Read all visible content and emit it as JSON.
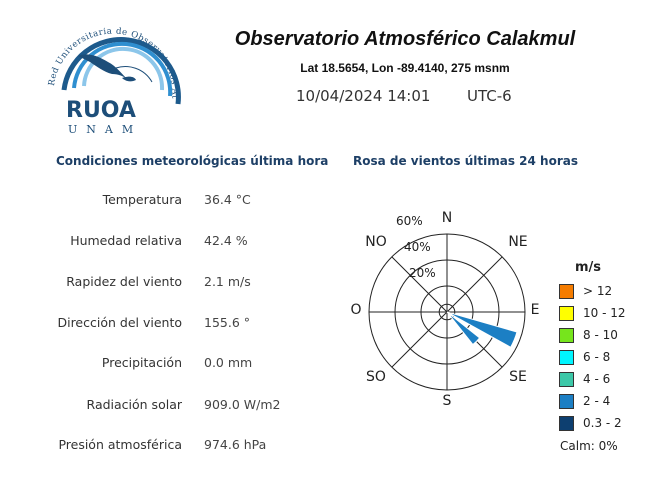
{
  "logo": {
    "arc_text": "Red Universitaria de Observatorios Atmosféricos",
    "name": "RUOA",
    "sub": "UNAM"
  },
  "header": {
    "title": "Observatorio Atmosférico Calakmul",
    "coords": "Lat 18.5654,  Lon -89.4140,  275 msnm",
    "datetime": "10/04/2024 14:01",
    "timezone": "UTC-6"
  },
  "conditions": {
    "title": "Condiciones meteorológicas última hora",
    "rows": [
      {
        "label": "Temperatura",
        "value": "36.4 °C"
      },
      {
        "label": "Humedad relativa",
        "value": "42.4 %"
      },
      {
        "label": "Rapidez del viento",
        "value": "2.1 m/s"
      },
      {
        "label": "Dirección del viento",
        "value": "155.6 °"
      },
      {
        "label": "Precipitación",
        "value": "0.0 mm"
      },
      {
        "label": "Radiación solar",
        "value": "909.0 W/m2"
      },
      {
        "label": "Presión atmosférica",
        "value": "974.6 hPa"
      }
    ]
  },
  "wind_rose": {
    "title": "Rosa de vientos últimas 24 horas",
    "directions": {
      "n": "N",
      "ne": "NE",
      "e": "E",
      "se": "SE",
      "s": "S",
      "so": "SO",
      "o": "O",
      "no": "NO"
    },
    "ring_labels": [
      "20%",
      "40%",
      "60%"
    ],
    "legend_title": "m/s",
    "legend": [
      {
        "label": "> 12",
        "color": "#f57c00"
      },
      {
        "label": "10 - 12",
        "color": "#ffff00"
      },
      {
        "label": "8 - 10",
        "color": "#76e51c"
      },
      {
        "label": "6 - 8",
        "color": "#00f5ff"
      },
      {
        "label": "4 - 6",
        "color": "#3cc8a8"
      },
      {
        "label": "2 - 4",
        "color": "#1c7fc4"
      },
      {
        "label": "0.3 - 2",
        "color": "#0d3f70"
      }
    ],
    "calm": "Calm: 0%"
  },
  "chart_data": {
    "type": "wind-rose",
    "title": "Rosa de vientos últimas 24 horas",
    "unit": "m/s",
    "radial_max_percent": 60,
    "radial_ticks_percent": [
      20,
      40,
      60
    ],
    "sectors": [
      {
        "direction_deg": 135,
        "bins": [
          {
            "range": "0.3 - 2",
            "percent": 4
          },
          {
            "range": "2 - 4",
            "percent": 28
          }
        ]
      },
      {
        "direction_deg": 112.5,
        "bins": [
          {
            "range": "0.3 - 2",
            "percent": 4
          },
          {
            "range": "2 - 4",
            "percent": 52
          }
        ]
      }
    ],
    "calm_percent": 0
  }
}
